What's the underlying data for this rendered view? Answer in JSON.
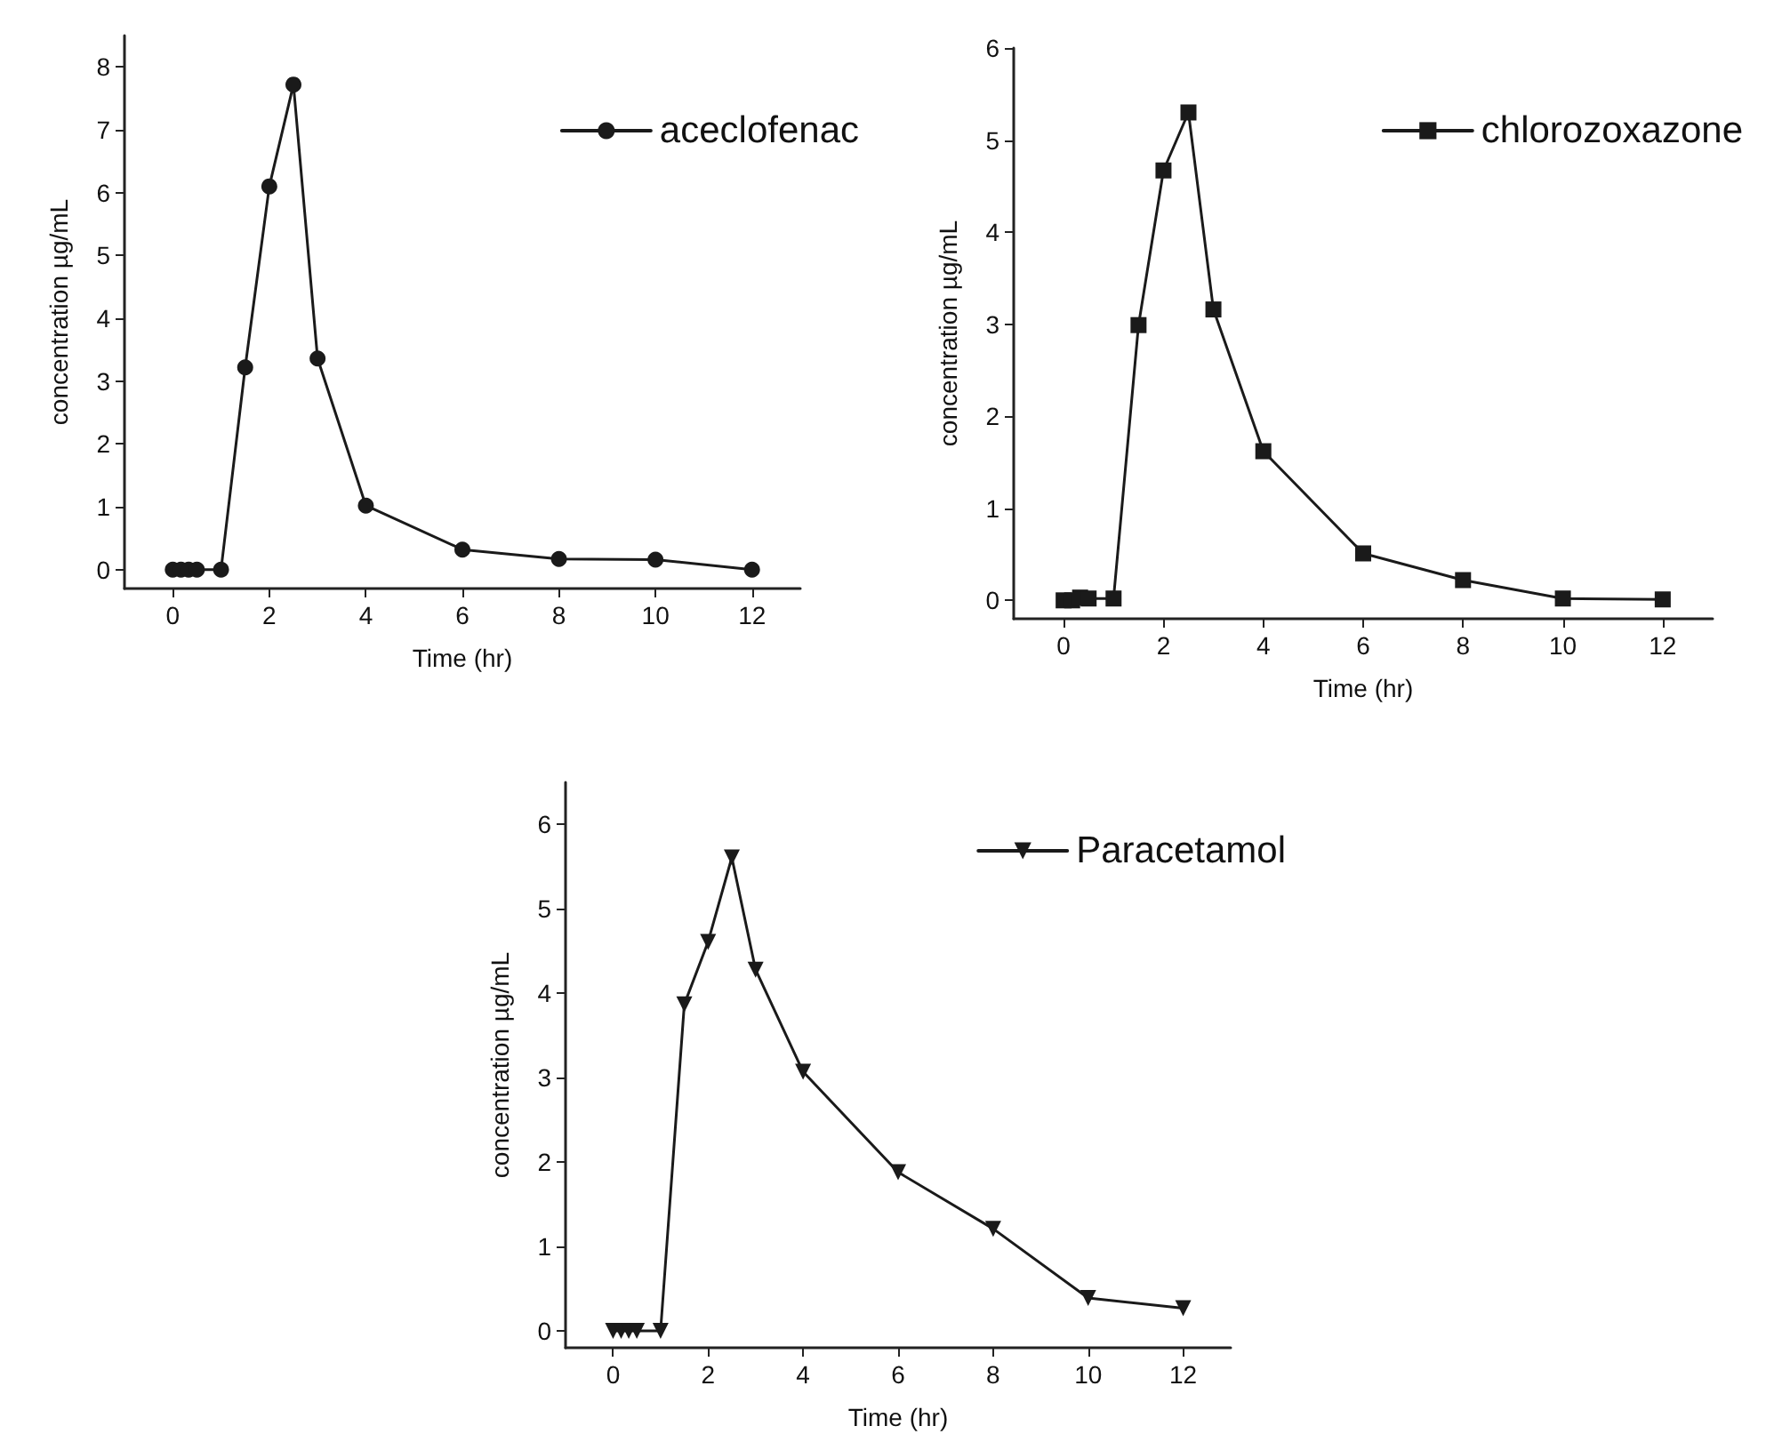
{
  "chart_data": [
    {
      "type": "line",
      "xlabel": "Time (hr)",
      "ylabel": "concentration µg/mL",
      "x": [
        0,
        0.17,
        0.33,
        0.5,
        1,
        1.5,
        2,
        2.5,
        3,
        4,
        6,
        8,
        10,
        12
      ],
      "xlim": [
        -1,
        13
      ],
      "xticks": [
        0,
        2,
        4,
        6,
        8,
        10,
        12
      ],
      "ylim": [
        -0.3,
        8.5
      ],
      "yticks": [
        0,
        1,
        2,
        3,
        4,
        5,
        6,
        7,
        8
      ],
      "legend": "top right",
      "marker": "circle",
      "line_style": "solid",
      "series": [
        {
          "name": "aceclofenac",
          "color": "#1a1a1a",
          "values": [
            0,
            0,
            0,
            0,
            0,
            3.22,
            6.1,
            7.72,
            3.36,
            1.02,
            0.32,
            0.17,
            0.16,
            0
          ]
        }
      ]
    },
    {
      "type": "line",
      "xlabel": "Time (hr)",
      "ylabel": "concentration µg/mL",
      "x": [
        0,
        0.17,
        0.33,
        0.5,
        1,
        1.5,
        2,
        2.5,
        3,
        4,
        6,
        8,
        10,
        12
      ],
      "xlim": [
        -1,
        13
      ],
      "xticks": [
        0,
        2,
        4,
        6,
        8,
        10,
        12
      ],
      "ylim": [
        -0.2,
        6
      ],
      "yticks": [
        0,
        1,
        2,
        3,
        4,
        5,
        6
      ],
      "legend": "top right",
      "marker": "square",
      "line_style": "solid",
      "series": [
        {
          "name": "chlorozoxazone",
          "color": "#1a1a1a",
          "values": [
            0,
            0,
            0.03,
            0.02,
            0.02,
            2.99,
            4.67,
            5.3,
            3.16,
            1.62,
            0.51,
            0.22,
            0.02,
            0.01
          ]
        }
      ]
    },
    {
      "type": "line",
      "xlabel": "Time (hr)",
      "ylabel": "concentration µg/mL",
      "x": [
        0,
        0.17,
        0.33,
        0.5,
        1,
        1.5,
        2,
        2.5,
        3,
        4,
        6,
        8,
        10,
        12
      ],
      "xlim": [
        -1,
        13
      ],
      "xticks": [
        0,
        2,
        4,
        6,
        8,
        10,
        12
      ],
      "ylim": [
        -0.2,
        6.5
      ],
      "yticks": [
        0,
        1,
        2,
        3,
        4,
        5,
        6
      ],
      "legend": "top right",
      "marker": "triangle",
      "line_style": "solid",
      "series": [
        {
          "name": "Paracetamol",
          "color": "#1a1a1a",
          "values": [
            0,
            0,
            0,
            0,
            0,
            3.87,
            4.61,
            5.61,
            4.28,
            3.07,
            1.88,
            1.21,
            0.39,
            0.27
          ]
        }
      ]
    }
  ]
}
